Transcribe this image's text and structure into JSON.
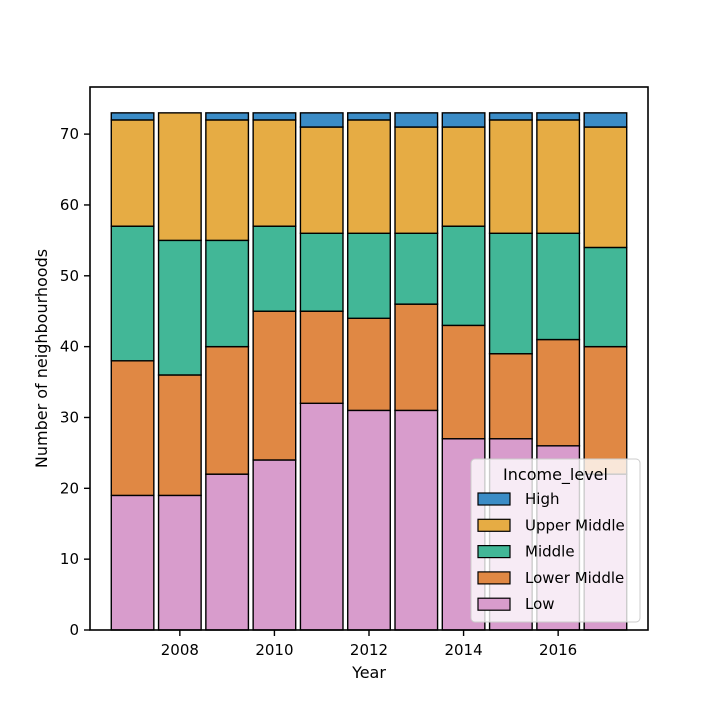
{
  "chart_data": {
    "type": "bar",
    "stacked": true,
    "x": [
      2007,
      2008,
      2009,
      2010,
      2011,
      2012,
      2013,
      2014,
      2015,
      2016,
      2017
    ],
    "xlabel": "Year",
    "ylabel": "Number of neighbourhoods",
    "xticks": [
      2008,
      2010,
      2012,
      2014,
      2016
    ],
    "yticks": [
      0,
      10,
      20,
      30,
      40,
      50,
      60,
      70
    ],
    "xlim": [
      2006.1,
      2017.9
    ],
    "ylim": [
      0,
      76.65
    ],
    "grid": false,
    "legend": {
      "title": "Income_level",
      "placement": "lower-right"
    },
    "series": [
      {
        "name": "Low",
        "color": "#d89ccc",
        "values": [
          19,
          19,
          22,
          24,
          32,
          31,
          31,
          27,
          27,
          26,
          22
        ]
      },
      {
        "name": "Lower Middle",
        "color": "#e08844",
        "values": [
          19,
          17,
          18,
          21,
          13,
          13,
          15,
          16,
          12,
          15,
          18
        ]
      },
      {
        "name": "Middle",
        "color": "#42b797",
        "values": [
          19,
          19,
          15,
          12,
          11,
          12,
          10,
          14,
          17,
          15,
          14
        ]
      },
      {
        "name": "Upper Middle",
        "color": "#e6ac44",
        "values": [
          15,
          18,
          17,
          15,
          15,
          16,
          15,
          14,
          16,
          16,
          17
        ]
      },
      {
        "name": "High",
        "color": "#3b8cc6",
        "values": [
          1,
          0,
          1,
          1,
          2,
          1,
          2,
          2,
          1,
          1,
          2
        ]
      }
    ],
    "legend_order": [
      "High",
      "Upper Middle",
      "Middle",
      "Lower Middle",
      "Low"
    ]
  }
}
